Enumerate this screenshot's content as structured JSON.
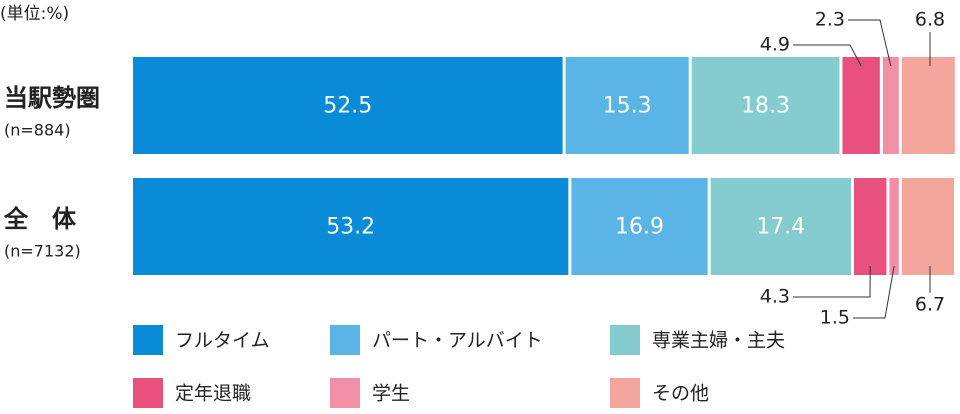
{
  "chart_data": {
    "type": "stacked-bar-horizontal",
    "unit_label": "(単位:%)",
    "categories": [
      "当駅勢圏",
      "全　体"
    ],
    "category_notes": [
      "(n=884)",
      "(n=7132)"
    ],
    "series": [
      {
        "name": "フルタイム",
        "color": "#0a8bd8",
        "values": [
          52.5,
          53.2
        ]
      },
      {
        "name": "パート・アルバイト",
        "color": "#5ab4e5",
        "values": [
          15.3,
          16.9
        ]
      },
      {
        "name": "専業主婦・主夫",
        "color": "#84ccd0",
        "values": [
          18.3,
          17.4
        ]
      },
      {
        "name": "定年退職",
        "color": "#e8507e",
        "values": [
          4.9,
          4.3
        ]
      },
      {
        "name": "学生",
        "color": "#f08fa5",
        "values": [
          2.3,
          1.5
        ]
      },
      {
        "name": "その他",
        "color": "#f3a69c",
        "values": [
          6.8,
          6.7
        ]
      }
    ]
  }
}
